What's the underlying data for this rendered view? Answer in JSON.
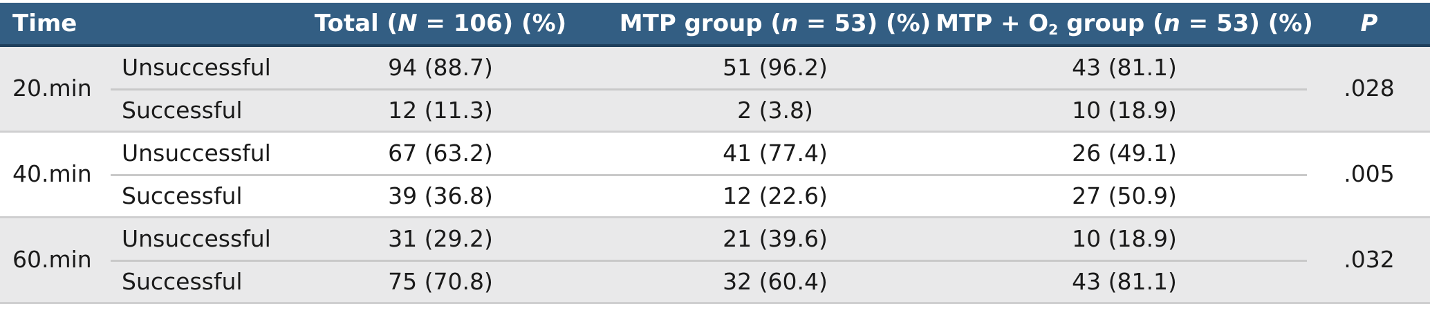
{
  "header": {
    "time": "Time",
    "total": {
      "pre": "Total (",
      "var": "N",
      "post": " = 106) (%)"
    },
    "mtp": {
      "pre": "MTP group (",
      "var": "n",
      "post": " = 53) (%)"
    },
    "mtp_o2": {
      "pre": "MTP + O",
      "sub": "2",
      "mid": " group (",
      "var": "n",
      "post": " = 53) (%)"
    },
    "p": "P"
  },
  "groups": [
    {
      "time": "20.min",
      "p": ".028",
      "rows": [
        {
          "outcome": "Unsuccessful",
          "total": "94 (88.7)",
          "mtp": "51 (96.2)",
          "mtp_o2": "43 (81.1)"
        },
        {
          "outcome": "Successful",
          "total": "12 (11.3)",
          "mtp": "2 (3.8)",
          "mtp_o2": "10 (18.9)"
        }
      ]
    },
    {
      "time": "40.min",
      "p": ".005",
      "rows": [
        {
          "outcome": "Unsuccessful",
          "total": "67 (63.2)",
          "mtp": "41 (77.4)",
          "mtp_o2": "26 (49.1)"
        },
        {
          "outcome": "Successful",
          "total": "39 (36.8)",
          "mtp": "12 (22.6)",
          "mtp_o2": "27 (50.9)"
        }
      ]
    },
    {
      "time": "60.min",
      "p": ".032",
      "rows": [
        {
          "outcome": "Unsuccessful",
          "total": "31 (29.2)",
          "mtp": "21 (39.6)",
          "mtp_o2": "10 (18.9)"
        },
        {
          "outcome": "Successful",
          "total": "75 (70.8)",
          "mtp": "32 (60.4)",
          "mtp_o2": "43 (81.1)"
        }
      ]
    }
  ],
  "colors": {
    "header_bg": "#335e83",
    "header_text": "#ffffff",
    "shade": "#e9e9ea"
  }
}
